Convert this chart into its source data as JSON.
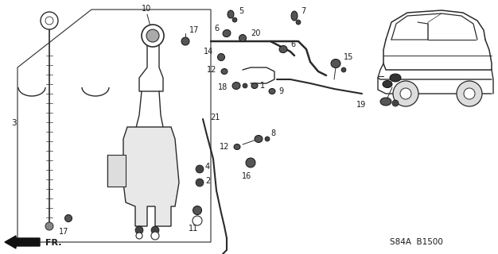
{
  "bg_color": "#ffffff",
  "line_color": "#2a2a2a",
  "text_color": "#1a1a1a",
  "fig_width": 6.26,
  "fig_height": 3.2,
  "dpi": 100,
  "watermark": "S84A  B1500",
  "fr_label": "FR."
}
